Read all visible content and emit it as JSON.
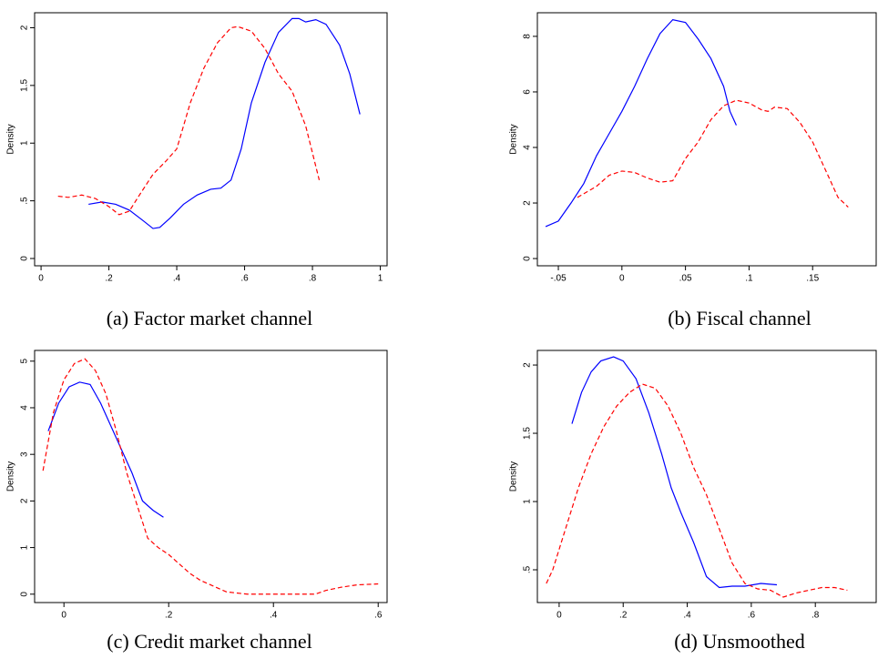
{
  "chart_data": [
    {
      "type": "line",
      "caption": "(a) Factor market channel",
      "ylabel": "Density",
      "xlim": [
        -0.019,
        1.02
      ],
      "ylim": [
        -0.063,
        2.13
      ],
      "xticks": [
        0,
        {
          "value": 0.2,
          "label": ".2"
        },
        {
          "value": 0.4,
          "label": ".4"
        },
        {
          "value": 0.6,
          "label": ".6"
        },
        {
          "value": 0.8,
          "label": ".8"
        },
        1
      ],
      "yticks": [
        0,
        {
          "value": 0.5,
          "label": ".5"
        },
        1,
        1.5,
        2
      ],
      "series": [
        {
          "color": "#0000ff",
          "dashed": false,
          "x": [
            0.14,
            0.18,
            0.22,
            0.26,
            0.3,
            0.33,
            0.35,
            0.38,
            0.42,
            0.46,
            0.5,
            0.53,
            0.56,
            0.59,
            0.62,
            0.66,
            0.7,
            0.74,
            0.76,
            0.78,
            0.81,
            0.84,
            0.88,
            0.91,
            0.94
          ],
          "values": [
            0.47,
            0.49,
            0.47,
            0.42,
            0.33,
            0.26,
            0.27,
            0.35,
            0.47,
            0.55,
            0.6,
            0.61,
            0.68,
            0.95,
            1.35,
            1.7,
            1.96,
            2.08,
            2.08,
            2.05,
            2.07,
            2.03,
            1.85,
            1.6,
            1.25
          ]
        },
        {
          "color": "#ff0000",
          "dashed": true,
          "x": [
            0.05,
            0.08,
            0.12,
            0.16,
            0.2,
            0.23,
            0.26,
            0.29,
            0.33,
            0.37,
            0.4,
            0.44,
            0.48,
            0.52,
            0.56,
            0.58,
            0.62,
            0.66,
            0.7,
            0.74,
            0.78,
            0.82
          ],
          "values": [
            0.54,
            0.53,
            0.55,
            0.52,
            0.45,
            0.38,
            0.41,
            0.55,
            0.73,
            0.85,
            0.95,
            1.35,
            1.65,
            1.87,
            2.0,
            2.01,
            1.97,
            1.82,
            1.6,
            1.45,
            1.15,
            0.68
          ]
        }
      ]
    },
    {
      "type": "line",
      "caption": "(b) Fiscal channel",
      "ylabel": "Density",
      "xlim": [
        -0.0665,
        0.2
      ],
      "ylim": [
        -0.26,
        8.85
      ],
      "xticks": [
        {
          "value": -0.05,
          "label": "-.05"
        },
        0,
        {
          "value": 0.05,
          "label": ".05"
        },
        {
          "value": 0.1,
          "label": ".1"
        },
        {
          "value": 0.15,
          "label": ".15"
        }
      ],
      "yticks": [
        0,
        2,
        4,
        6,
        8
      ],
      "series": [
        {
          "color": "#0000ff",
          "dashed": false,
          "x": [
            -0.06,
            -0.05,
            -0.04,
            -0.03,
            -0.02,
            -0.01,
            0,
            0.01,
            0.02,
            0.03,
            0.04,
            0.05,
            0.06,
            0.07,
            0.08,
            0.085,
            0.09
          ],
          "values": [
            1.15,
            1.35,
            2.0,
            2.7,
            3.7,
            4.5,
            5.3,
            6.2,
            7.2,
            8.1,
            8.6,
            8.5,
            7.9,
            7.2,
            6.2,
            5.3,
            4.8
          ]
        },
        {
          "color": "#ff0000",
          "dashed": true,
          "x": [
            -0.035,
            -0.02,
            -0.01,
            0,
            0.01,
            0.02,
            0.03,
            0.04,
            0.05,
            0.06,
            0.07,
            0.08,
            0.09,
            0.1,
            0.11,
            0.115,
            0.12,
            0.13,
            0.14,
            0.15,
            0.16,
            0.17,
            0.178
          ],
          "values": [
            2.2,
            2.6,
            3.0,
            3.15,
            3.1,
            2.9,
            2.75,
            2.8,
            3.6,
            4.2,
            5.0,
            5.5,
            5.7,
            5.6,
            5.35,
            5.3,
            5.45,
            5.4,
            4.9,
            4.2,
            3.2,
            2.2,
            1.85
          ]
        }
      ]
    },
    {
      "type": "line",
      "caption": "(c) Credit market channel",
      "ylabel": "Density",
      "xlim": [
        -0.056,
        0.617
      ],
      "ylim": [
        -0.18,
        5.23
      ],
      "xticks": [
        0,
        {
          "value": 0.2,
          "label": ".2"
        },
        {
          "value": 0.4,
          "label": ".4"
        },
        {
          "value": 0.6,
          "label": ".6"
        }
      ],
      "yticks": [
        0,
        1,
        2,
        3,
        4,
        5
      ],
      "series": [
        {
          "color": "#0000ff",
          "dashed": false,
          "x": [
            -0.03,
            -0.01,
            0.01,
            0.03,
            0.05,
            0.07,
            0.09,
            0.11,
            0.13,
            0.15,
            0.17,
            0.19
          ],
          "values": [
            3.5,
            4.1,
            4.45,
            4.55,
            4.5,
            4.1,
            3.6,
            3.1,
            2.6,
            2.0,
            1.8,
            1.65
          ]
        },
        {
          "color": "#ff0000",
          "dashed": true,
          "x": [
            -0.04,
            -0.02,
            0,
            0.02,
            0.04,
            0.06,
            0.08,
            0.1,
            0.12,
            0.14,
            0.16,
            0.18,
            0.2,
            0.22,
            0.24,
            0.26,
            0.28,
            0.31,
            0.35,
            0.4,
            0.45,
            0.48,
            0.5,
            0.53,
            0.56,
            0.6
          ],
          "values": [
            2.65,
            3.9,
            4.6,
            4.95,
            5.05,
            4.8,
            4.3,
            3.5,
            2.6,
            1.9,
            1.2,
            1.0,
            0.85,
            0.65,
            0.45,
            0.3,
            0.2,
            0.05,
            0,
            0,
            0,
            0,
            0.08,
            0.15,
            0.2,
            0.22
          ]
        }
      ]
    },
    {
      "type": "line",
      "caption": "(d) Unsmoothed",
      "ylabel": "Density",
      "xlim": [
        -0.068,
        0.99
      ],
      "ylim": [
        0.26,
        2.107
      ],
      "xticks": [
        0,
        {
          "value": 0.2,
          "label": ".2"
        },
        {
          "value": 0.4,
          "label": ".4"
        },
        {
          "value": 0.6,
          "label": ".6"
        },
        {
          "value": 0.8,
          "label": ".8"
        }
      ],
      "yticks": [
        {
          "value": 0.5,
          "label": ".5"
        },
        1,
        1.5,
        2
      ],
      "series": [
        {
          "color": "#0000ff",
          "dashed": false,
          "x": [
            0.04,
            0.07,
            0.1,
            0.13,
            0.17,
            0.2,
            0.24,
            0.28,
            0.32,
            0.35,
            0.38,
            0.42,
            0.46,
            0.5,
            0.54,
            0.58,
            0.63,
            0.68
          ],
          "values": [
            1.57,
            1.8,
            1.95,
            2.03,
            2.06,
            2.03,
            1.9,
            1.65,
            1.35,
            1.1,
            0.92,
            0.7,
            0.45,
            0.37,
            0.38,
            0.38,
            0.4,
            0.39
          ]
        },
        {
          "color": "#ff0000",
          "dashed": true,
          "x": [
            -0.04,
            -0.02,
            0.02,
            0.06,
            0.1,
            0.14,
            0.18,
            0.22,
            0.26,
            0.3,
            0.34,
            0.38,
            0.42,
            0.46,
            0.5,
            0.54,
            0.58,
            0.62,
            0.66,
            0.7,
            0.74,
            0.78,
            0.82,
            0.86,
            0.9
          ],
          "values": [
            0.4,
            0.5,
            0.8,
            1.1,
            1.35,
            1.55,
            1.7,
            1.8,
            1.86,
            1.83,
            1.7,
            1.5,
            1.25,
            1.05,
            0.8,
            0.55,
            0.4,
            0.36,
            0.35,
            0.3,
            0.33,
            0.35,
            0.37,
            0.37,
            0.35
          ]
        }
      ]
    }
  ]
}
